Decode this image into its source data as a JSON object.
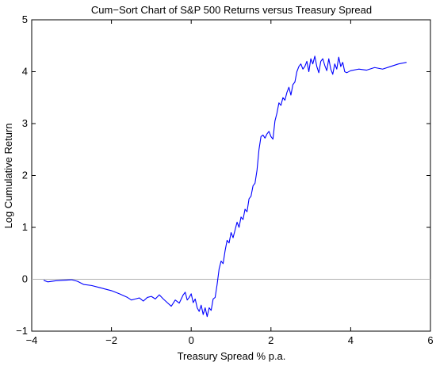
{
  "chart_data": {
    "type": "line",
    "title": "Cum−Sort Chart of S&P 500 Returns versus Treasury Spread",
    "xlabel": "Treasury Spread % p.a.",
    "ylabel": "Log Cumulative Return",
    "xlim": [
      -4,
      6
    ],
    "ylim": [
      -1,
      5
    ],
    "xticks": [
      -4,
      -2,
      0,
      2,
      4,
      6
    ],
    "xtick_labels": [
      "−4",
      "−2",
      "0",
      "2",
      "4",
      "6"
    ],
    "yticks": [
      -1,
      0,
      1,
      2,
      3,
      4,
      5
    ],
    "ytick_labels": [
      "−1",
      "0",
      "1",
      "2",
      "3",
      "4",
      "5"
    ],
    "grid": false,
    "reference_line": {
      "y": 0,
      "color": "#b0b0b0"
    },
    "series": [
      {
        "color": "#0000ff",
        "x": [
          -3.7,
          -3.6,
          -3.4,
          -3.2,
          -3.0,
          -2.85,
          -2.7,
          -2.5,
          -2.2,
          -2.0,
          -1.8,
          -1.6,
          -1.5,
          -1.4,
          -1.3,
          -1.2,
          -1.1,
          -1.0,
          -0.9,
          -0.8,
          -0.7,
          -0.6,
          -0.5,
          -0.4,
          -0.3,
          -0.2,
          -0.15,
          -0.1,
          -0.05,
          0.0,
          0.05,
          0.1,
          0.15,
          0.2,
          0.25,
          0.3,
          0.35,
          0.4,
          0.45,
          0.5,
          0.55,
          0.6,
          0.65,
          0.7,
          0.75,
          0.8,
          0.85,
          0.9,
          0.95,
          1.0,
          1.05,
          1.1,
          1.15,
          1.2,
          1.25,
          1.3,
          1.35,
          1.4,
          1.45,
          1.5,
          1.55,
          1.6,
          1.65,
          1.7,
          1.75,
          1.8,
          1.85,
          1.9,
          1.95,
          2.0,
          2.05,
          2.1,
          2.15,
          2.2,
          2.25,
          2.3,
          2.35,
          2.4,
          2.45,
          2.5,
          2.55,
          2.6,
          2.65,
          2.7,
          2.75,
          2.8,
          2.85,
          2.9,
          2.95,
          3.0,
          3.05,
          3.1,
          3.15,
          3.2,
          3.25,
          3.3,
          3.35,
          3.4,
          3.45,
          3.5,
          3.55,
          3.6,
          3.65,
          3.7,
          3.75,
          3.8,
          3.85,
          3.9,
          4.0,
          4.2,
          4.4,
          4.6,
          4.8,
          5.0,
          5.2,
          5.4
        ],
        "y": [
          -0.02,
          -0.05,
          -0.03,
          -0.02,
          -0.01,
          -0.04,
          -0.1,
          -0.12,
          -0.18,
          -0.22,
          -0.28,
          -0.35,
          -0.4,
          -0.38,
          -0.36,
          -0.42,
          -0.35,
          -0.33,
          -0.38,
          -0.3,
          -0.38,
          -0.45,
          -0.52,
          -0.4,
          -0.46,
          -0.3,
          -0.25,
          -0.4,
          -0.35,
          -0.28,
          -0.45,
          -0.38,
          -0.55,
          -0.62,
          -0.5,
          -0.68,
          -0.55,
          -0.72,
          -0.55,
          -0.6,
          -0.38,
          -0.35,
          -0.1,
          0.2,
          0.35,
          0.3,
          0.55,
          0.75,
          0.7,
          0.9,
          0.8,
          0.95,
          1.1,
          1.0,
          1.2,
          1.15,
          1.35,
          1.3,
          1.55,
          1.6,
          1.8,
          1.85,
          2.1,
          2.5,
          2.75,
          2.78,
          2.72,
          2.8,
          2.85,
          2.75,
          2.7,
          3.05,
          3.2,
          3.4,
          3.35,
          3.5,
          3.45,
          3.6,
          3.7,
          3.55,
          3.75,
          3.8,
          4.0,
          4.1,
          4.15,
          4.05,
          4.1,
          4.2,
          4.0,
          4.25,
          4.15,
          4.3,
          4.1,
          3.98,
          4.2,
          4.25,
          4.12,
          4.02,
          4.25,
          4.05,
          3.95,
          4.15,
          4.05,
          4.28,
          4.1,
          4.18,
          4.0,
          3.98,
          4.02,
          4.05,
          4.03,
          4.08,
          4.05,
          4.1,
          4.15,
          4.18
        ]
      }
    ]
  }
}
